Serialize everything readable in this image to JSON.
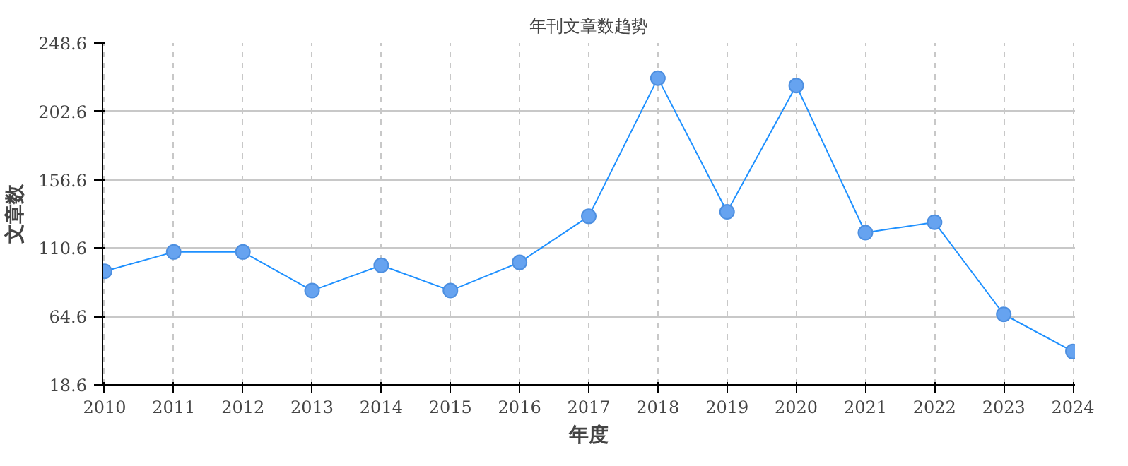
{
  "chart_data": {
    "type": "line",
    "title": "年刊文章数趋势",
    "xlabel": "年度",
    "ylabel": "文章数",
    "categories": [
      "2010",
      "2011",
      "2012",
      "2013",
      "2014",
      "2015",
      "2016",
      "2017",
      "2018",
      "2019",
      "2020",
      "2021",
      "2022",
      "2023",
      "2024"
    ],
    "series": [
      {
        "color": "#1e90ff",
        "values": [
          95,
          108,
          108,
          82,
          99,
          82,
          101,
          132,
          225,
          135,
          220,
          121,
          128,
          66,
          41
        ]
      }
    ],
    "ylim": [
      18.6,
      248.6
    ],
    "yticks": [
      18.6,
      64.6,
      110.6,
      156.6,
      202.6,
      248.6
    ],
    "grid": true,
    "marker": "circle",
    "line_style": "solid"
  }
}
